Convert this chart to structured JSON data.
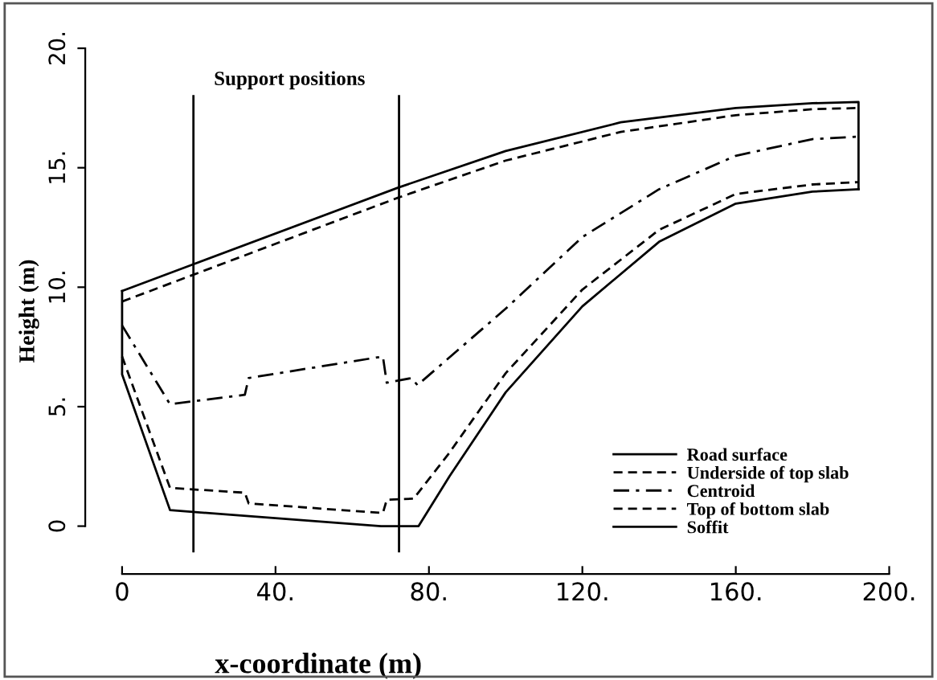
{
  "chart_data": {
    "type": "line",
    "xlabel": "x-coordinate (m)",
    "ylabel": "Height (m)",
    "annotations": [
      "Support positions"
    ],
    "xlim": [
      -9.6,
      200
    ],
    "ylim": [
      -2,
      20
    ],
    "xticks": [
      0,
      {
        "value": 40,
        "label": "40."
      },
      {
        "value": 80,
        "label": "80."
      },
      {
        "value": 120,
        "label": "120."
      },
      {
        "value": 160,
        "label": "160."
      },
      {
        "value": 200,
        "label": "200."
      }
    ],
    "yticks": [
      0,
      {
        "value": 5,
        "label": "5."
      },
      {
        "value": 10,
        "label": "10."
      },
      {
        "value": 15,
        "label": "15."
      },
      {
        "value": 20,
        "label": "20."
      }
    ],
    "grid": false,
    "legend": "bottom right",
    "marker": "none",
    "series": [
      {
        "name": "Road surface",
        "color": "#000000",
        "line_style": "solid",
        "x": [
          0,
          18.6,
          72,
          100,
          130,
          160,
          180,
          192,
          192
        ],
        "values": [
          9.84,
          10.96,
          14.17,
          15.7,
          16.9,
          17.5,
          17.7,
          17.75,
          14.1
        ]
      },
      {
        "name": "Underside of top slab",
        "color": "#000000",
        "line_style": "dashed",
        "x": [
          0,
          72,
          100,
          130,
          160,
          180,
          192
        ],
        "values": [
          9.4,
          13.75,
          15.3,
          16.5,
          17.2,
          17.45,
          17.5
        ]
      },
      {
        "name": "Centroid",
        "color": "#000000",
        "line_style": "dashdot",
        "x": [
          0,
          12.5,
          32,
          33,
          68,
          69,
          75.5,
          77,
          100,
          120,
          140,
          160,
          180,
          192
        ],
        "values": [
          8.4,
          5.1,
          5.5,
          6.2,
          7.1,
          6.0,
          6.2,
          5.9,
          9.1,
          12.1,
          14.1,
          15.5,
          16.2,
          16.3
        ]
      },
      {
        "name": "Top of bottom slab",
        "color": "#000000",
        "line_style": "dashed",
        "x": [
          0,
          12.5,
          32,
          33,
          68,
          69,
          76,
          85,
          100,
          120,
          140,
          160,
          180,
          192
        ],
        "values": [
          7.1,
          1.6,
          1.4,
          0.95,
          0.55,
          1.1,
          1.15,
          3.0,
          6.4,
          9.9,
          12.4,
          13.9,
          14.3,
          14.4
        ]
      },
      {
        "name": "Soffit",
        "color": "#000000",
        "line_style": "solid",
        "x": [
          0,
          0,
          12.5,
          67.5,
          77.3,
          85.4,
          100,
          120,
          140,
          160,
          180,
          192
        ],
        "values": [
          9.84,
          6.35,
          0.67,
          0.0,
          0.0,
          2.1,
          5.6,
          9.2,
          11.9,
          13.5,
          14.0,
          14.1
        ]
      },
      {
        "color": "#000000",
        "line_style": "solid",
        "x": [
          18.6,
          18.6
        ],
        "values": [
          -1.05,
          18.0
        ]
      },
      {
        "color": "#000000",
        "line_style": "solid",
        "x": [
          72.2,
          72.2
        ],
        "values": [
          -1.05,
          18.0
        ]
      }
    ]
  }
}
